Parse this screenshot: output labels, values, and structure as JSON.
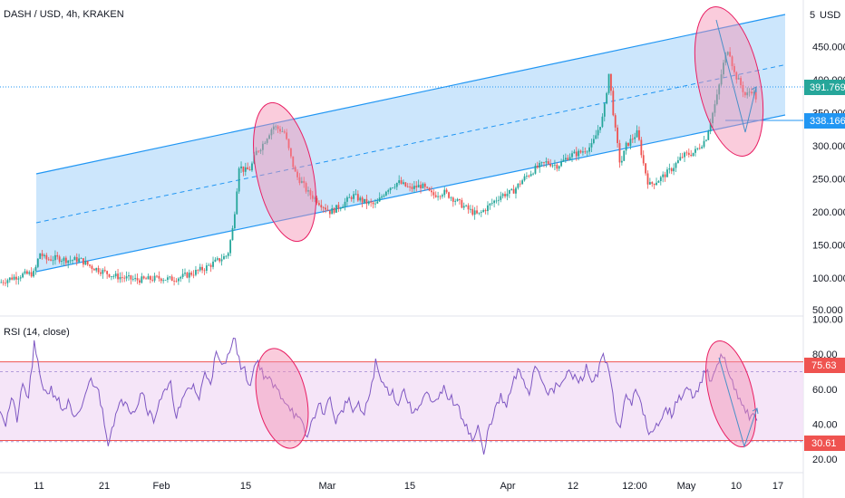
{
  "chart_data": [
    {
      "type": "candlestick",
      "title": "DASH / USD, 4h, KRAKEN",
      "currency": "USD",
      "y_ticks": [
        {
          "value": 100,
          "label": "100.000"
        },
        {
          "value": 150,
          "label": "150.000"
        },
        {
          "value": 200,
          "label": "200.000"
        },
        {
          "value": 250,
          "label": "250.000"
        },
        {
          "value": 300,
          "label": "300.000"
        },
        {
          "value": 350,
          "label": "350.000"
        },
        {
          "value": 400,
          "label": "400.000"
        },
        {
          "value": 450,
          "label": "450.000"
        }
      ],
      "ylim_partial_labels": [
        "50.000",
        "5"
      ],
      "x_ticks": [
        "11",
        "21",
        "Feb",
        "15",
        "Mar",
        "15",
        "Apr",
        "12",
        "12:00",
        "May",
        "10",
        "17"
      ],
      "price_markers": [
        {
          "label": "391.769",
          "color": "#26a69a"
        },
        {
          "label": "338.166",
          "color": "#2196f3"
        }
      ],
      "channel": {
        "upper_start": 257,
        "upper_end": 500,
        "lower_start": 105,
        "lower_end": 350,
        "color": "#2196f3"
      },
      "price_path": [
        [
          0,
          93
        ],
        [
          2,
          100
        ],
        [
          4,
          105
        ],
        [
          6,
          107
        ],
        [
          7,
          138
        ],
        [
          8,
          128
        ],
        [
          10,
          130
        ],
        [
          12,
          127
        ],
        [
          14,
          128
        ],
        [
          16,
          117
        ],
        [
          18,
          110
        ],
        [
          20,
          103
        ],
        [
          22,
          100
        ],
        [
          24,
          97
        ],
        [
          26,
          98
        ],
        [
          28,
          100
        ],
        [
          30,
          98
        ],
        [
          32,
          102
        ],
        [
          34,
          108
        ],
        [
          36,
          115
        ],
        [
          38,
          125
        ],
        [
          40,
          135
        ],
        [
          41,
          180
        ],
        [
          42,
          270
        ],
        [
          43,
          262
        ],
        [
          44,
          265
        ],
        [
          45,
          290
        ],
        [
          46,
          300
        ],
        [
          48,
          330
        ],
        [
          50,
          320
        ],
        [
          51,
          285
        ],
        [
          52,
          255
        ],
        [
          53,
          245
        ],
        [
          54,
          230
        ],
        [
          56,
          215
        ],
        [
          58,
          200
        ],
        [
          60,
          210
        ],
        [
          62,
          225
        ],
        [
          64,
          215
        ],
        [
          66,
          210
        ],
        [
          68,
          235
        ],
        [
          70,
          245
        ],
        [
          72,
          235
        ],
        [
          74,
          240
        ],
        [
          76,
          225
        ],
        [
          78,
          230
        ],
        [
          80,
          218
        ],
        [
          82,
          205
        ],
        [
          84,
          195
        ],
        [
          86,
          210
        ],
        [
          88,
          225
        ],
        [
          90,
          230
        ],
        [
          92,
          250
        ],
        [
          94,
          265
        ],
        [
          96,
          275
        ],
        [
          98,
          270
        ],
        [
          100,
          285
        ],
        [
          102,
          290
        ],
        [
          104,
          300
        ],
        [
          106,
          345
        ],
        [
          107,
          410
        ],
        [
          108,
          330
        ],
        [
          109,
          270
        ],
        [
          110,
          300
        ],
        [
          112,
          320
        ],
        [
          113,
          275
        ],
        [
          114,
          240
        ],
        [
          116,
          250
        ],
        [
          118,
          265
        ],
        [
          120,
          285
        ],
        [
          122,
          290
        ],
        [
          124,
          310
        ],
        [
          126,
          375
        ],
        [
          127,
          420
        ],
        [
          128,
          450
        ],
        [
          129,
          410
        ],
        [
          130,
          395
        ],
        [
          131,
          375
        ],
        [
          132,
          385
        ],
        [
          133,
          370
        ]
      ],
      "projection": [
        [
          133,
          370
        ],
        [
          135,
          340
        ],
        [
          136,
          345
        ],
        [
          137,
          355
        ]
      ]
    },
    {
      "type": "line",
      "title": "RSI (14, close)",
      "y_ticks": [
        {
          "value": 20,
          "label": "20.00"
        },
        {
          "value": 40,
          "label": "40.00"
        },
        {
          "value": 60,
          "label": "60.00"
        },
        {
          "value": 80,
          "label": "80.00"
        },
        {
          "value": 100,
          "label": "100.00"
        }
      ],
      "ylim": [
        15,
        100
      ],
      "band": [
        30.61,
        75.63
      ],
      "band_labels": [
        "75.63",
        "30.61"
      ],
      "series": [
        {
          "values": [
            [
              0,
              50
            ],
            [
              1,
              40
            ],
            [
              2,
              55
            ],
            [
              3,
              43
            ],
            [
              4,
              62
            ],
            [
              5,
              55
            ],
            [
              6,
              85
            ],
            [
              7,
              68
            ],
            [
              8,
              58
            ],
            [
              9,
              60
            ],
            [
              10,
              55
            ],
            [
              11,
              48
            ],
            [
              12,
              52
            ],
            [
              13,
              42
            ],
            [
              14,
              45
            ],
            [
              15,
              58
            ],
            [
              16,
              65
            ],
            [
              17,
              62
            ],
            [
              18,
              48
            ],
            [
              19,
              30
            ],
            [
              20,
              42
            ],
            [
              21,
              50
            ],
            [
              22,
              55
            ],
            [
              23,
              48
            ],
            [
              24,
              50
            ],
            [
              25,
              60
            ],
            [
              26,
              48
            ],
            [
              27,
              42
            ],
            [
              28,
              54
            ],
            [
              29,
              58
            ],
            [
              30,
              62
            ],
            [
              31,
              45
            ],
            [
              32,
              52
            ],
            [
              33,
              60
            ],
            [
              34,
              62
            ],
            [
              35,
              54
            ],
            [
              36,
              70
            ],
            [
              37,
              65
            ],
            [
              38,
              80
            ],
            [
              39,
              72
            ],
            [
              40,
              78
            ],
            [
              41,
              92
            ],
            [
              42,
              76
            ],
            [
              43,
              70
            ],
            [
              44,
              62
            ],
            [
              45,
              78
            ],
            [
              46,
              70
            ],
            [
              47,
              66
            ],
            [
              48,
              62
            ],
            [
              49,
              58
            ],
            [
              50,
              54
            ],
            [
              51,
              50
            ],
            [
              52,
              44
            ],
            [
              53,
              40
            ],
            [
              54,
              32
            ],
            [
              55,
              44
            ],
            [
              56,
              50
            ],
            [
              57,
              48
            ],
            [
              58,
              54
            ],
            [
              59,
              42
            ],
            [
              60,
              46
            ],
            [
              61,
              55
            ],
            [
              62,
              48
            ],
            [
              63,
              50
            ],
            [
              64,
              45
            ],
            [
              65,
              58
            ],
            [
              66,
              75
            ],
            [
              67,
              64
            ],
            [
              68,
              60
            ],
            [
              69,
              58
            ],
            [
              70,
              52
            ],
            [
              71,
              60
            ],
            [
              72,
              50
            ],
            [
              73,
              46
            ],
            [
              74,
              54
            ],
            [
              75,
              58
            ],
            [
              76,
              50
            ],
            [
              77,
              54
            ],
            [
              78,
              60
            ],
            [
              79,
              55
            ],
            [
              80,
              52
            ],
            [
              81,
              45
            ],
            [
              82,
              40
            ],
            [
              83,
              30
            ],
            [
              84,
              38
            ],
            [
              85,
              22
            ],
            [
              86,
              40
            ],
            [
              87,
              48
            ],
            [
              88,
              55
            ],
            [
              89,
              50
            ],
            [
              90,
              62
            ],
            [
              91,
              70
            ],
            [
              92,
              65
            ],
            [
              93,
              58
            ],
            [
              94,
              74
            ],
            [
              95,
              68
            ],
            [
              96,
              60
            ],
            [
              97,
              58
            ],
            [
              98,
              62
            ],
            [
              99,
              64
            ],
            [
              100,
              70
            ],
            [
              101,
              66
            ],
            [
              102,
              65
            ],
            [
              103,
              72
            ],
            [
              104,
              64
            ],
            [
              105,
              70
            ],
            [
              106,
              78
            ],
            [
              107,
              70
            ],
            [
              108,
              48
            ],
            [
              109,
              36
            ],
            [
              110,
              58
            ],
            [
              111,
              52
            ],
            [
              112,
              60
            ],
            [
              113,
              48
            ],
            [
              114,
              32
            ],
            [
              115,
              36
            ],
            [
              116,
              44
            ],
            [
              117,
              50
            ],
            [
              118,
              46
            ],
            [
              119,
              52
            ],
            [
              120,
              58
            ],
            [
              121,
              60
            ],
            [
              122,
              54
            ],
            [
              123,
              64
            ],
            [
              124,
              72
            ],
            [
              125,
              62
            ],
            [
              126,
              74
            ],
            [
              127,
              80
            ],
            [
              128,
              70
            ],
            [
              129,
              60
            ],
            [
              130,
              52
            ],
            [
              131,
              48
            ],
            [
              132,
              44
            ],
            [
              133,
              42
            ]
          ]
        }
      ],
      "projection": [
        [
          133,
          42
        ],
        [
          134,
          32
        ],
        [
          135,
          39
        ],
        [
          136,
          48
        ]
      ]
    }
  ]
}
